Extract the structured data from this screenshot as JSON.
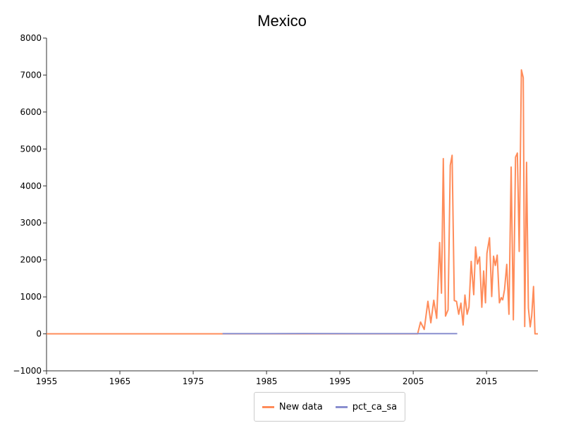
{
  "chart_data": {
    "type": "line",
    "title": "Mexico",
    "xlabel": "",
    "ylabel": "",
    "xlim": [
      1955,
      2022
    ],
    "ylim": [
      -1000,
      8000
    ],
    "x_ticks": [
      "1955",
      "1965",
      "1975",
      "1985",
      "1995",
      "2005",
      "2015"
    ],
    "y_ticks": [
      "8000",
      "7000",
      "6000",
      "5000",
      "4000",
      "3000",
      "2000",
      "1000",
      "0",
      "−1000"
    ],
    "grid": false,
    "legend_position": "bottom",
    "series": [
      {
        "name": "New data",
        "color": "#ff8c5a",
        "x": [
          1955,
          1979,
          2005.6,
          2006.0,
          2006.5,
          2007.0,
          2007.4,
          2007.8,
          2008.2,
          2008.6,
          2008.85,
          2009.1,
          2009.4,
          2009.75,
          2010.05,
          2010.3,
          2010.6,
          2010.9,
          2011.2,
          2011.5,
          2011.8,
          2012.05,
          2012.35,
          2012.6,
          2012.9,
          2013.25,
          2013.5,
          2013.75,
          2014.05,
          2014.35,
          2014.6,
          2014.85,
          2015.05,
          2015.4,
          2015.7,
          2015.95,
          2016.2,
          2016.45,
          2016.75,
          2017.0,
          2017.2,
          2017.45,
          2017.75,
          2018.05,
          2018.35,
          2018.65,
          2018.95,
          2019.2,
          2019.45,
          2019.75,
          2020.0,
          2020.2,
          2020.45,
          2020.7,
          2020.95,
          2021.15,
          2021.4,
          2021.6,
          2021.8,
          2022.0
        ],
        "y": [
          0,
          0,
          0,
          320,
          120,
          880,
          300,
          910,
          420,
          2470,
          1100,
          4740,
          480,
          650,
          4560,
          4830,
          900,
          880,
          530,
          830,
          240,
          1050,
          530,
          720,
          1960,
          1060,
          2350,
          1890,
          2080,
          720,
          1700,
          840,
          2180,
          2600,
          1010,
          2100,
          1850,
          2130,
          840,
          980,
          920,
          1200,
          1880,
          530,
          4510,
          380,
          4780,
          4890,
          2230,
          7140,
          6930,
          200,
          4640,
          700,
          190,
          480,
          1280,
          0,
          0,
          0
        ]
      },
      {
        "name": "pct_ca_sa",
        "color": "#8a8fcf",
        "x": [
          1979,
          1990,
          2000,
          2011
        ],
        "y": [
          5,
          8,
          6,
          5
        ]
      }
    ]
  }
}
